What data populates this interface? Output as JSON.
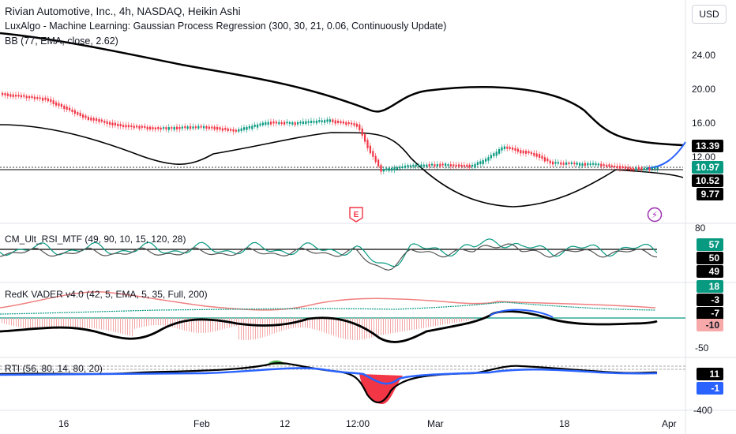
{
  "header": {
    "title": "Rivian Automotive, Inc., 4h, NASDAQ, Heikin Ashi",
    "indicator1": "LuxAlgo - Machine Learning: Gaussian Process Regression (300, 30, 21, 0.06, Continuously Update)",
    "indicator2": "BB (77, EMA, close, 2.62)"
  },
  "currency": "USD",
  "price_axis": [
    "24.00",
    "20.00",
    "16.00",
    "12.00"
  ],
  "price_tags": [
    {
      "value": "13.39",
      "color": "#000000"
    },
    {
      "value": "10.97",
      "color": "#089981"
    },
    {
      "value": "10.52",
      "color": "#000000"
    },
    {
      "value": "9.77",
      "color": "#000000"
    }
  ],
  "panes": {
    "rsi": {
      "label": "CM_Ult_RSI_MTF (49, 90, 10, 15, 120, 28)",
      "axis_top": "80",
      "tags": [
        {
          "value": "57",
          "color": "#089981"
        },
        {
          "value": "50",
          "color": "#000000"
        },
        {
          "value": "49",
          "color": "#000000"
        }
      ]
    },
    "vader": {
      "label": "RedK VADER v4.0 (42, 5, EMA, 5, 35, Full, 200)",
      "axis_bottom": "-50",
      "tags": [
        {
          "value": "18",
          "color": "#089981"
        },
        {
          "value": "-3",
          "color": "#000000"
        },
        {
          "value": "-7",
          "color": "#000000"
        },
        {
          "value": "-10",
          "color": "#f7a9a9"
        }
      ]
    },
    "rti": {
      "label": "RTI (56, 80, 14, 80, 20)",
      "axis_bottom": "-400",
      "tags": [
        {
          "value": "11",
          "color": "#000000"
        },
        {
          "value": "-1",
          "color": "#2962ff"
        }
      ]
    }
  },
  "time_axis": [
    "16",
    "Feb",
    "12",
    "12:00",
    "Mar",
    "18",
    "Apr"
  ],
  "events": {
    "earnings": "E",
    "split": "⚡"
  }
}
